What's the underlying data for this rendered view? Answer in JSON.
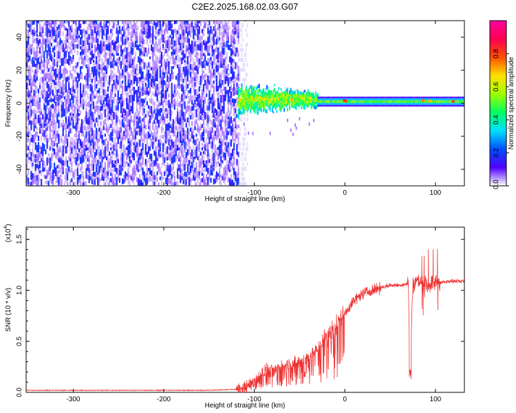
{
  "figure": {
    "title": "C2E2.2025.168.02.03.G07"
  },
  "chart_data": [
    {
      "type": "heatmap",
      "name": "spectrogram",
      "xlabel": "Height of straight line (km)",
      "ylabel": "Frequency (Hz)",
      "xlim": [
        -352,
        132
      ],
      "ylim": [
        -50,
        50
      ],
      "xticks": [
        -300,
        -200,
        -100,
        0,
        100
      ],
      "yticks": [
        -40,
        -20,
        0,
        20,
        40
      ],
      "colorbar": {
        "label": "Normalized spectral amplitude",
        "range": [
          0,
          1
        ],
        "ticks": [
          "0.0",
          "0.2",
          "0.4",
          "0.6",
          "0.8"
        ],
        "colormap": [
          "#ffffff",
          "#5000ff",
          "#0050ff",
          "#00e0ff",
          "#00ff60",
          "#a0ff00",
          "#ffe000",
          "#ff5000",
          "#ff0050",
          "#ff00a0"
        ]
      },
      "regions": [
        {
          "x_range": [
            -352,
            -118
          ],
          "freq_range": [
            -50,
            50
          ],
          "character": "broadband noise",
          "amplitude": 0.15
        },
        {
          "x_range": [
            -118,
            -30
          ],
          "freq_range": [
            -12,
            12
          ],
          "character": "transition band",
          "amplitude": 0.35
        },
        {
          "x_range": [
            -30,
            132
          ],
          "freq_range": [
            -2,
            4
          ],
          "center_freq": 1,
          "character": "narrow tone",
          "amplitude": 0.45
        }
      ]
    },
    {
      "type": "line",
      "name": "snr",
      "xlabel": "Height of straight line (km)",
      "ylabel": "SNR (10 * v/v)",
      "y_scale_label": "(x10",
      "y_scale_exp": "4",
      "y_scale_close": ")",
      "xlim": [
        -352,
        132
      ],
      "ylim": [
        0,
        1.62
      ],
      "xticks": [
        -300,
        -200,
        -100,
        0,
        100
      ],
      "yticks": [
        0.0,
        0.5,
        1.0,
        1.5
      ],
      "ytick_labels": [
        "0.0",
        "0.5",
        "1.0",
        "1.5"
      ],
      "color": "#ee3333",
      "series": [
        {
          "x": [
            -352,
            -300,
            -250,
            -200,
            -150,
            -120,
            -110,
            -100,
            -90,
            -80,
            -70,
            -60,
            -50,
            -40,
            -30,
            -20,
            -10,
            0,
            10,
            20,
            30,
            40,
            50,
            60,
            65,
            70,
            72,
            75,
            80,
            90,
            100,
            110,
            120,
            132
          ],
          "values": [
            0.02,
            0.02,
            0.02,
            0.02,
            0.02,
            0.03,
            0.05,
            0.12,
            0.2,
            0.22,
            0.25,
            0.28,
            0.3,
            0.35,
            0.42,
            0.55,
            0.65,
            0.78,
            0.9,
            0.97,
            1.0,
            1.03,
            1.05,
            1.05,
            1.06,
            1.07,
            0.2,
            1.05,
            1.1,
            1.05,
            1.08,
            1.08,
            1.09,
            1.1
          ]
        }
      ]
    }
  ]
}
